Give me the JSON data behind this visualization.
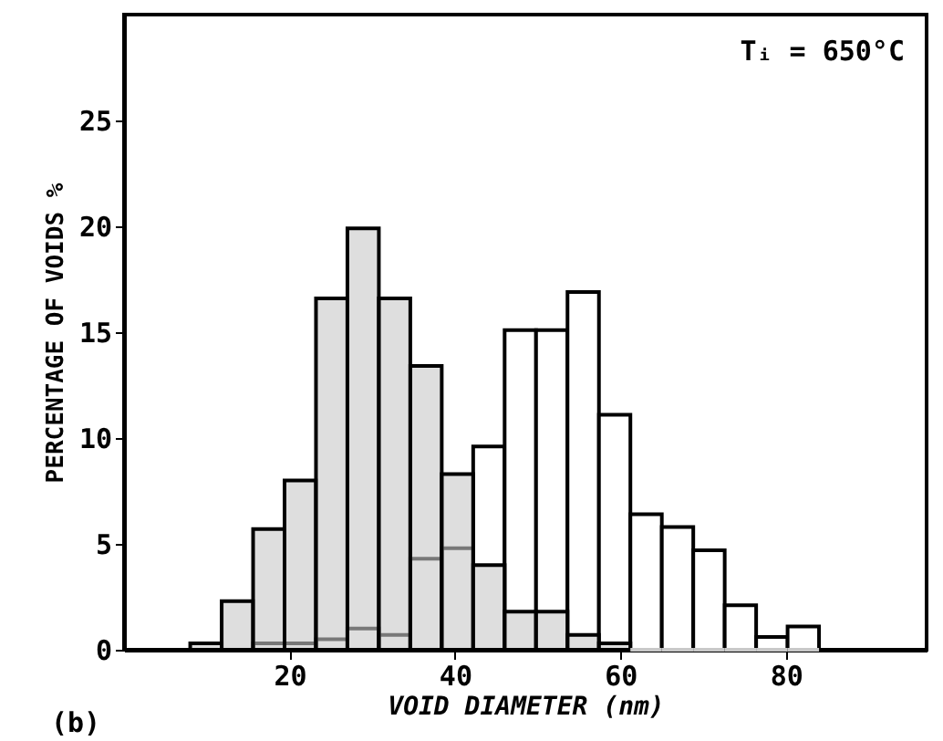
{
  "chart_data": {
    "type": "histogram",
    "xlabel": "VOID DIAMETER (nm)",
    "ylabel": "PERCENTAGE OF VOIDS %",
    "annotations": [
      "Tᵢ = 650°C",
      "(b)"
    ],
    "bins": [
      8,
      11.8,
      15.6,
      19.4,
      23.2,
      27,
      30.8,
      34.6,
      38.4,
      42.2,
      46,
      49.8,
      53.6,
      57.4,
      61.2,
      65,
      68.8,
      72.6,
      76.4,
      80.2,
      84
    ],
    "series": [
      {
        "color": "#ffffff",
        "values": [
          0,
          0,
          0.3,
          0.3,
          0.5,
          1.0,
          0.7,
          4.3,
          4.8,
          9.6,
          15.1,
          15.1,
          16.9,
          11.1,
          6.4,
          5.8,
          4.7,
          2.1,
          0.6,
          1.1
        ]
      },
      {
        "color": "#c8c8c8",
        "values": [
          0.3,
          2.3,
          5.7,
          8,
          16.6,
          19.9,
          16.6,
          13.4,
          8.3,
          4,
          1.8,
          1.8,
          0.7,
          0.3,
          0,
          0,
          0,
          0,
          0,
          0
        ]
      }
    ],
    "xlim": [
      0,
      97
    ],
    "ylim": [
      0,
      30
    ],
    "xticks": [
      20,
      40,
      60,
      80
    ],
    "yticks": [
      0,
      5,
      10,
      15,
      20,
      25
    ],
    "grid": false
  }
}
